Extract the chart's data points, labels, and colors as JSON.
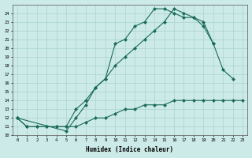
{
  "xlabel": "Humidex (Indice chaleur)",
  "bg_color": "#cceae7",
  "grid_color": "#aad4d0",
  "line_color": "#1a6b5a",
  "xlim": [
    -0.5,
    23.5
  ],
  "ylim": [
    10,
    25
  ],
  "yticks": [
    10,
    11,
    12,
    13,
    14,
    15,
    16,
    17,
    18,
    19,
    20,
    21,
    22,
    23,
    24
  ],
  "xticks": [
    0,
    1,
    2,
    3,
    4,
    5,
    6,
    7,
    8,
    9,
    10,
    11,
    12,
    13,
    14,
    15,
    16,
    17,
    18,
    19,
    20,
    21,
    22,
    23
  ],
  "line1_x": [
    0,
    1,
    2,
    3,
    4,
    5,
    6,
    7,
    8,
    9,
    10,
    11,
    12,
    13,
    14,
    15,
    16,
    17,
    18,
    19,
    20,
    21,
    22,
    23
  ],
  "line1_y": [
    12,
    11,
    11,
    11,
    11,
    11,
    11,
    11.5,
    12,
    12,
    12.5,
    13,
    13,
    13.5,
    13.5,
    13.5,
    14,
    14,
    14,
    14,
    14,
    14,
    14,
    14
  ],
  "line2_x": [
    0,
    1,
    2,
    3,
    4,
    5,
    6,
    7,
    8,
    9,
    10,
    11,
    12,
    13,
    14,
    15,
    16,
    17,
    18,
    19,
    20,
    21,
    22
  ],
  "line2_y": [
    12,
    11,
    11,
    11,
    11,
    11,
    13,
    14,
    15.5,
    16.5,
    18,
    19,
    20,
    21,
    22,
    23,
    24.5,
    24,
    23.5,
    22.5,
    20.5,
    17.5,
    16.5
  ],
  "line3_x": [
    0,
    5,
    6,
    7,
    8,
    9,
    10,
    11,
    12,
    13,
    14,
    15,
    16,
    17,
    18,
    19,
    20
  ],
  "line3_y": [
    12,
    10.5,
    12,
    13.5,
    15.5,
    16.5,
    20.5,
    21,
    22.5,
    23,
    24.5,
    24.5,
    24,
    23.5,
    23.5,
    23,
    20.5
  ]
}
